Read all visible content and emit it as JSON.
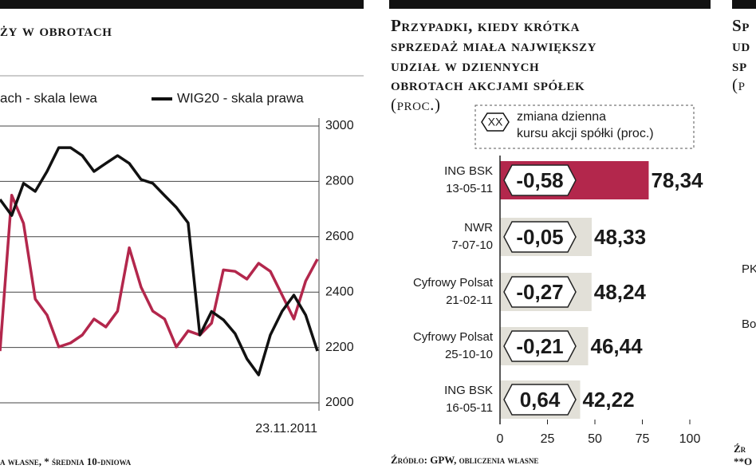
{
  "chart_data": [
    {
      "type": "line",
      "title": "ży w obrotach",
      "categories": [
        null,
        null,
        null,
        null,
        null,
        null,
        null,
        null,
        null,
        null,
        null,
        null,
        null,
        null,
        null,
        null,
        null,
        null,
        null,
        null,
        null,
        null,
        null,
        null,
        null,
        null,
        null,
        "23.11.2011"
      ],
      "series": [
        {
          "name": "ach - skala lewa",
          "color": "#b3274c",
          "values": [
            2187,
            2750,
            2648,
            2375,
            2317,
            2202,
            2216,
            2245,
            2303,
            2274,
            2331,
            2560,
            2418,
            2331,
            2303,
            2202,
            2260,
            2245,
            2288,
            2480,
            2475,
            2447,
            2504,
            2475,
            2389,
            2303,
            2440,
            2519
          ]
        },
        {
          "name": "WIG20 - skala prawa",
          "color": "#111111",
          "values": [
            2735,
            2677,
            2793,
            2764,
            2836,
            2922,
            2922,
            2893,
            2836,
            2865,
            2893,
            2865,
            2807,
            2793,
            2749,
            2706,
            2650,
            2245,
            2330,
            2300,
            2250,
            2159,
            2101,
            2245,
            2331,
            2389,
            2317,
            2187
          ]
        }
      ],
      "ylim": [
        2000,
        3000
      ],
      "yticks": [
        2000,
        2200,
        2400,
        2600,
        2800,
        3000
      ],
      "grid": true,
      "footnote": "a własne, * średnia 10-dniowa"
    },
    {
      "type": "hbar",
      "title": [
        "Przypadki, kiedy krótka",
        "sprzedaż miała największy",
        "udział w dziennych",
        "obrotach akcjami spółek",
        "(proc.)"
      ],
      "legend_symbol": "XX",
      "legend_text": [
        "zmiana dzienna",
        "kursu akcji spółki (proc.)"
      ],
      "categories": [
        [
          "ING BSK",
          "13-05-11"
        ],
        [
          "NWR",
          "7-07-10"
        ],
        [
          "Cyfrowy Polsat",
          "21-02-11"
        ],
        [
          "Cyfrowy Polsat",
          "25-10-10"
        ],
        [
          "ING BSK",
          "16-05-11"
        ]
      ],
      "values": [
        78.34,
        48.33,
        48.24,
        46.44,
        42.22
      ],
      "value_labels": [
        "78,34",
        "48,33",
        "48,24",
        "46,44",
        "42,22"
      ],
      "changes": [
        -0.58,
        -0.05,
        -0.27,
        -0.21,
        0.64
      ],
      "change_labels": [
        "-0,58",
        "-0,05",
        "-0,27",
        "-0,21",
        "0,64"
      ],
      "colors": [
        "#b3274c",
        "#e2e0d8",
        "#e2e0d8",
        "#e2e0d8",
        "#e2e0d8"
      ],
      "xlim": [
        0,
        100
      ],
      "xticks": [
        0,
        25,
        50,
        75,
        100
      ],
      "source": "Źródło: GPW, obliczenia własne"
    }
  ],
  "fragments": {
    "title": [
      "Sp",
      "ud",
      "sp",
      "(p"
    ],
    "labels": [
      "PK",
      "Bo"
    ],
    "source": [
      "Źr",
      "**O"
    ]
  }
}
